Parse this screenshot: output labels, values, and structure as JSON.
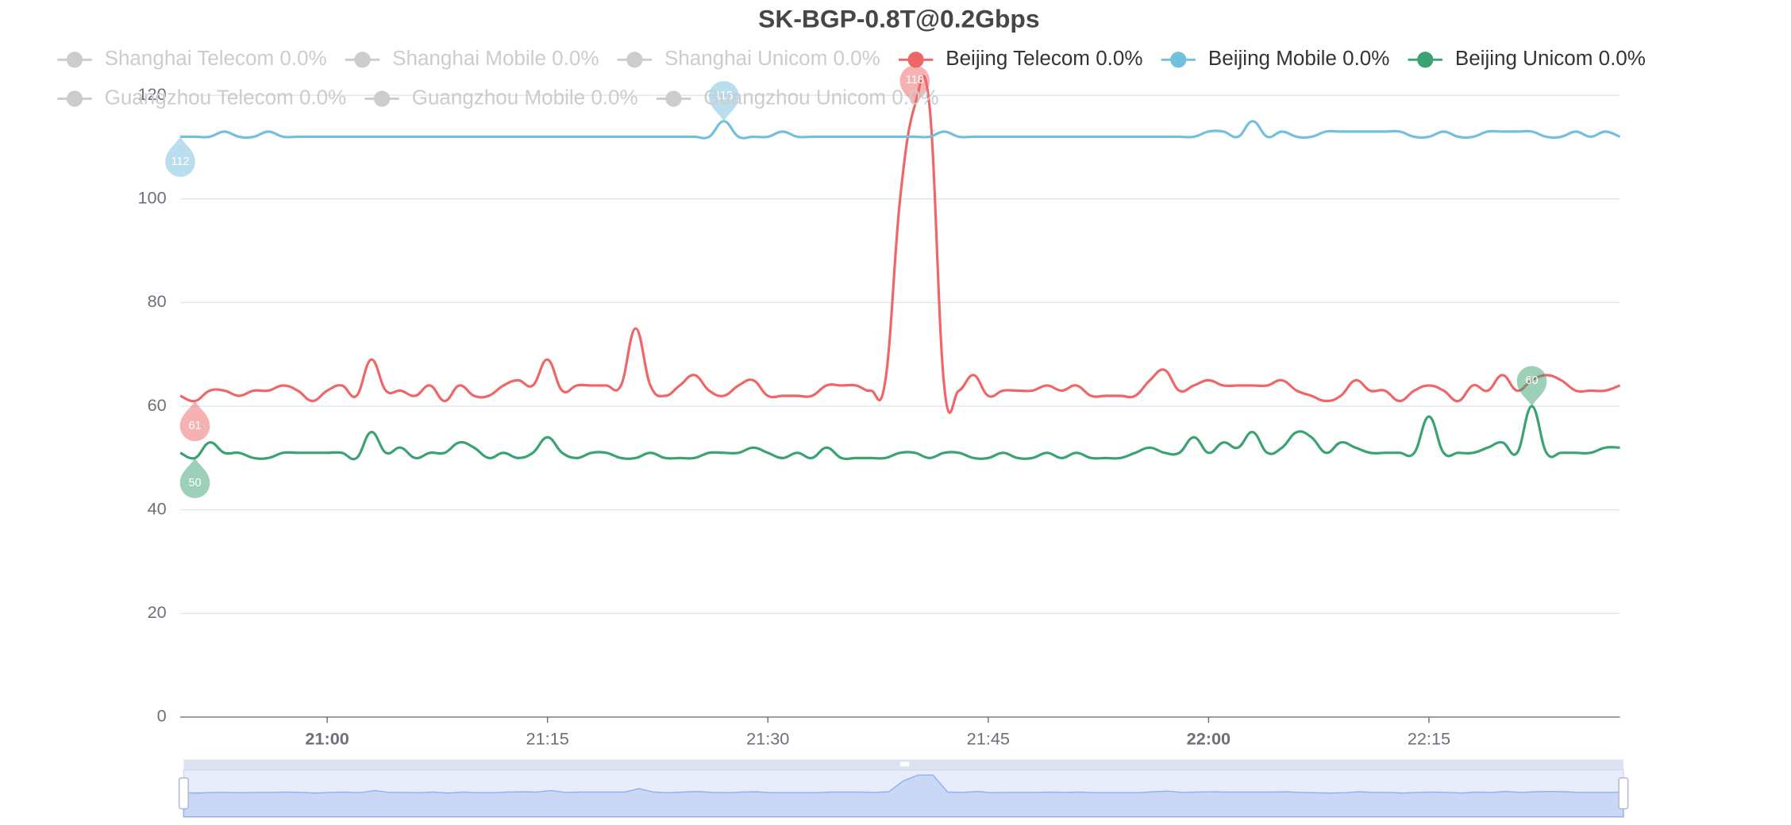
{
  "chart_data": {
    "type": "line",
    "title": "SK-BGP-0.8T@0.2Gbps",
    "x": [
      "20:50",
      "20:51",
      "20:52",
      "20:53",
      "20:54",
      "20:55",
      "20:56",
      "20:57",
      "20:58",
      "20:59",
      "21:00",
      "21:01",
      "21:02",
      "21:03",
      "21:04",
      "21:05",
      "21:06",
      "21:07",
      "21:08",
      "21:09",
      "21:10",
      "21:11",
      "21:12",
      "21:13",
      "21:14",
      "21:15",
      "21:16",
      "21:17",
      "21:18",
      "21:19",
      "21:20",
      "21:21",
      "21:22",
      "21:23",
      "21:24",
      "21:25",
      "21:26",
      "21:27",
      "21:28",
      "21:29",
      "21:30",
      "21:31",
      "21:32",
      "21:33",
      "21:34",
      "21:35",
      "21:36",
      "21:37",
      "21:38",
      "21:39",
      "21:40",
      "21:41",
      "21:42",
      "21:43",
      "21:44",
      "21:45",
      "21:46",
      "21:47",
      "21:48",
      "21:49",
      "21:50",
      "21:51",
      "21:52",
      "21:53",
      "21:54",
      "21:55",
      "21:56",
      "21:57",
      "21:58",
      "21:59",
      "22:00",
      "22:01",
      "22:02",
      "22:03",
      "22:04",
      "22:05",
      "22:06",
      "22:07",
      "22:08",
      "22:09",
      "22:10",
      "22:11",
      "22:12",
      "22:13",
      "22:14",
      "22:15",
      "22:16",
      "22:17",
      "22:18",
      "22:19",
      "22:20",
      "22:21",
      "22:22",
      "22:23",
      "22:24",
      "22:25",
      "22:26",
      "22:27",
      "22:28"
    ],
    "xticks": [
      "21:00",
      "21:15",
      "21:30",
      "21:45",
      "22:00",
      "22:15"
    ],
    "ylim": [
      0,
      120
    ],
    "yticks": [
      0,
      20,
      40,
      60,
      80,
      100,
      120
    ],
    "grid": true,
    "smooth": true,
    "mark_points": [
      "max",
      "min"
    ],
    "inactive_color": "#cccccc",
    "data_zoom": true,
    "series": [
      {
        "name": "Shanghai Telecom 0.0%",
        "visible": false
      },
      {
        "name": "Shanghai Mobile 0.0%",
        "visible": false
      },
      {
        "name": "Shanghai Unicom 0.0%",
        "visible": false
      },
      {
        "name": "Beijing Telecom 0.0%",
        "visible": true,
        "color": "#ee6666",
        "values": [
          62,
          61,
          63,
          63,
          62,
          63,
          63,
          64,
          63,
          61,
          63,
          64,
          62,
          69,
          63,
          63,
          62,
          64,
          61,
          64,
          62,
          62,
          64,
          65,
          64,
          69,
          63,
          64,
          64,
          64,
          64,
          75,
          64,
          62,
          64,
          66,
          63,
          62,
          64,
          65,
          62,
          62,
          62,
          62,
          64,
          64,
          64,
          63,
          65,
          100,
          118,
          118,
          64,
          63,
          66,
          62,
          63,
          63,
          63,
          64,
          63,
          64,
          62,
          62,
          62,
          62,
          65,
          67,
          63,
          64,
          65,
          64,
          64,
          64,
          64,
          65,
          63,
          62,
          61,
          62,
          65,
          63,
          63,
          61,
          63,
          64,
          63,
          61,
          64,
          63,
          66,
          63,
          65,
          66,
          65,
          63,
          63,
          63,
          64
        ]
      },
      {
        "name": "Beijing Mobile 0.0%",
        "visible": true,
        "color": "#73c0de",
        "values": [
          112,
          112,
          112,
          113,
          112,
          112,
          113,
          112,
          112,
          112,
          112,
          112,
          112,
          112,
          112,
          112,
          112,
          112,
          112,
          112,
          112,
          112,
          112,
          112,
          112,
          112,
          112,
          112,
          112,
          112,
          112,
          112,
          112,
          112,
          112,
          112,
          112,
          115,
          112,
          112,
          112,
          113,
          112,
          112,
          112,
          112,
          112,
          112,
          112,
          112,
          112,
          112,
          113,
          112,
          112,
          112,
          112,
          112,
          112,
          112,
          112,
          112,
          112,
          112,
          112,
          112,
          112,
          112,
          112,
          112,
          113,
          113,
          112,
          115,
          112,
          113,
          112,
          112,
          113,
          113,
          113,
          113,
          113,
          113,
          112,
          112,
          113,
          112,
          112,
          113,
          113,
          113,
          113,
          112,
          112,
          113,
          112,
          113,
          112
        ]
      },
      {
        "name": "Beijing Unicom 0.0%",
        "visible": true,
        "color": "#3ba272",
        "values": [
          51,
          50,
          53,
          51,
          51,
          50,
          50,
          51,
          51,
          51,
          51,
          51,
          50,
          55,
          51,
          52,
          50,
          51,
          51,
          53,
          52,
          50,
          51,
          50,
          51,
          54,
          51,
          50,
          51,
          51,
          50,
          50,
          51,
          50,
          50,
          50,
          51,
          51,
          51,
          52,
          51,
          50,
          51,
          50,
          52,
          50,
          50,
          50,
          50,
          51,
          51,
          50,
          51,
          51,
          50,
          50,
          51,
          50,
          50,
          51,
          50,
          51,
          50,
          50,
          50,
          51,
          52,
          51,
          51,
          54,
          51,
          53,
          52,
          55,
          51,
          52,
          55,
          54,
          51,
          53,
          52,
          51,
          51,
          51,
          51,
          58,
          51,
          51,
          51,
          52,
          53,
          51,
          60,
          51,
          51,
          51,
          51,
          52,
          52
        ]
      },
      {
        "name": "Guangzhou Telecom 0.0%",
        "visible": false
      },
      {
        "name": "Guangzhou Mobile 0.0%",
        "visible": false
      },
      {
        "name": "Guangzhou Unicom 0.0%",
        "visible": false
      }
    ]
  }
}
